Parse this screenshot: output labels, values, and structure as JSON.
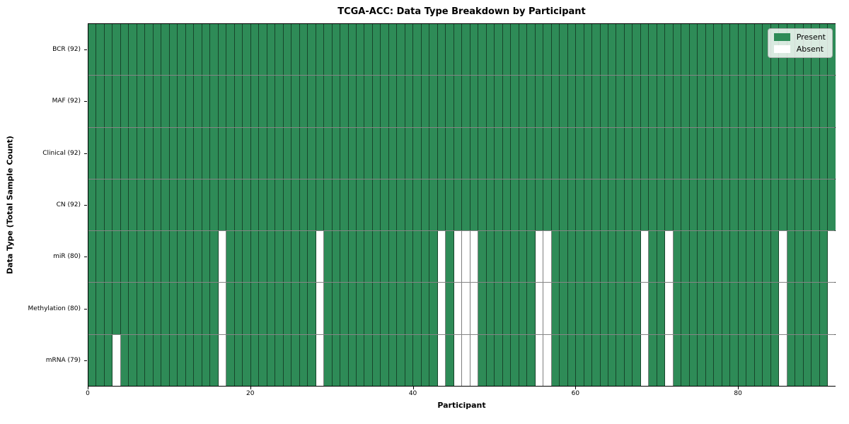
{
  "chart_data": {
    "type": "heatmap",
    "title": "TCGA-ACC: Data Type Breakdown by Participant",
    "xlabel": "Participant",
    "ylabel": "Data Type (Total Sample Count)",
    "n_participants": 92,
    "xlim": [
      0,
      92
    ],
    "x_ticks": [
      0,
      20,
      40,
      60,
      80
    ],
    "grid": "cell-edges",
    "legend_position": "upper-right",
    "legend": [
      {
        "label": "Present",
        "color": "#2e8b57"
      },
      {
        "label": "Absent",
        "color": "#ffffff"
      }
    ],
    "rows": [
      {
        "label": "BCR (92)",
        "present_count": 92,
        "absent_participants": []
      },
      {
        "label": "MAF (92)",
        "present_count": 92,
        "absent_participants": []
      },
      {
        "label": "Clinical (92)",
        "present_count": 92,
        "absent_participants": []
      },
      {
        "label": "CN (92)",
        "present_count": 92,
        "absent_participants": []
      },
      {
        "label": "miR (80)",
        "present_count": 80,
        "absent_participants": [
          16,
          28,
          43,
          45,
          46,
          47,
          55,
          56,
          68,
          71,
          85,
          91
        ]
      },
      {
        "label": "Methylation (80)",
        "present_count": 80,
        "absent_participants": [
          16,
          28,
          43,
          45,
          46,
          47,
          55,
          56,
          68,
          71,
          85,
          91
        ]
      },
      {
        "label": "mRNA (79)",
        "present_count": 79,
        "absent_participants": [
          3,
          16,
          28,
          43,
          45,
          46,
          47,
          55,
          56,
          68,
          71,
          85,
          91
        ]
      }
    ],
    "colors": {
      "present": "#2e8b57",
      "absent": "#ffffff",
      "cell_edge": "rgba(0,0,0,0.5)",
      "axis_frame": "#000000"
    }
  }
}
